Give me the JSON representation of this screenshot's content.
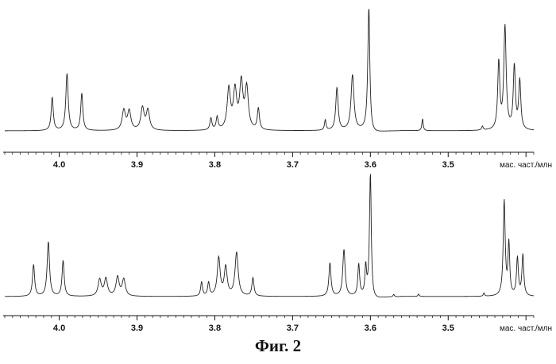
{
  "caption": "Фиг. 2",
  "chart_data": [
    {
      "type": "line",
      "panel": "top",
      "xlabel": "мас. част./млн",
      "xlim": [
        4.07,
        3.39
      ],
      "x_reversed": true,
      "xticks": [
        "4.0",
        "3.9",
        "3.8",
        "3.7",
        "3.6",
        "3.5"
      ],
      "tick_values": [
        4.0,
        3.9,
        3.8,
        3.7,
        3.6,
        3.5
      ],
      "peaks": [
        {
          "ppm": 4.009,
          "height": 0.42,
          "width": 0.0016
        },
        {
          "ppm": 3.99,
          "height": 0.72,
          "width": 0.0018
        },
        {
          "ppm": 3.971,
          "height": 0.47,
          "width": 0.0016
        },
        {
          "ppm": 3.917,
          "height": 0.25,
          "width": 0.0025
        },
        {
          "ppm": 3.91,
          "height": 0.24,
          "width": 0.0025
        },
        {
          "ppm": 3.893,
          "height": 0.28,
          "width": 0.0025
        },
        {
          "ppm": 3.886,
          "height": 0.25,
          "width": 0.0025
        },
        {
          "ppm": 3.805,
          "height": 0.15,
          "width": 0.0015
        },
        {
          "ppm": 3.797,
          "height": 0.16,
          "width": 0.0015
        },
        {
          "ppm": 3.782,
          "height": 0.51,
          "width": 0.0025
        },
        {
          "ppm": 3.774,
          "height": 0.48,
          "width": 0.0025
        },
        {
          "ppm": 3.766,
          "height": 0.58,
          "width": 0.0025
        },
        {
          "ppm": 3.759,
          "height": 0.52,
          "width": 0.0025
        },
        {
          "ppm": 3.744,
          "height": 0.27,
          "width": 0.0016
        },
        {
          "ppm": 3.658,
          "height": 0.13,
          "width": 0.0012
        },
        {
          "ppm": 3.643,
          "height": 0.54,
          "width": 0.0018
        },
        {
          "ppm": 3.623,
          "height": 0.7,
          "width": 0.0022
        },
        {
          "ppm": 3.602,
          "height": 1.55,
          "width": 0.0016
        },
        {
          "ppm": 3.533,
          "height": 0.15,
          "width": 0.001
        },
        {
          "ppm": 3.456,
          "height": 0.05,
          "width": 0.0012
        },
        {
          "ppm": 3.435,
          "height": 0.85,
          "width": 0.0016
        },
        {
          "ppm": 3.427,
          "height": 1.3,
          "width": 0.0018
        },
        {
          "ppm": 3.415,
          "height": 0.8,
          "width": 0.0016
        },
        {
          "ppm": 3.408,
          "height": 0.62,
          "width": 0.0016
        }
      ]
    },
    {
      "type": "line",
      "panel": "bottom",
      "xlabel": "мас. част./млн",
      "xlim": [
        4.07,
        3.39
      ],
      "x_reversed": true,
      "xticks": [
        "4.0",
        "3.9",
        "3.8",
        "3.7",
        "3.6",
        "3.5"
      ],
      "tick_values": [
        4.0,
        3.9,
        3.8,
        3.7,
        3.6,
        3.5
      ],
      "peaks": [
        {
          "ppm": 4.033,
          "height": 0.4,
          "width": 0.0016
        },
        {
          "ppm": 4.014,
          "height": 0.69,
          "width": 0.0018
        },
        {
          "ppm": 3.995,
          "height": 0.45,
          "width": 0.0016
        },
        {
          "ppm": 3.948,
          "height": 0.21,
          "width": 0.0024
        },
        {
          "ppm": 3.94,
          "height": 0.22,
          "width": 0.0024
        },
        {
          "ppm": 3.925,
          "height": 0.24,
          "width": 0.0024
        },
        {
          "ppm": 3.917,
          "height": 0.21,
          "width": 0.0024
        },
        {
          "ppm": 3.817,
          "height": 0.18,
          "width": 0.0014
        },
        {
          "ppm": 3.808,
          "height": 0.17,
          "width": 0.0014
        },
        {
          "ppm": 3.795,
          "height": 0.48,
          "width": 0.0022
        },
        {
          "ppm": 3.786,
          "height": 0.36,
          "width": 0.0022
        },
        {
          "ppm": 3.772,
          "height": 0.55,
          "width": 0.0024
        },
        {
          "ppm": 3.751,
          "height": 0.23,
          "width": 0.0016
        },
        {
          "ppm": 3.652,
          "height": 0.42,
          "width": 0.0016
        },
        {
          "ppm": 3.634,
          "height": 0.59,
          "width": 0.0018
        },
        {
          "ppm": 3.615,
          "height": 0.4,
          "width": 0.0014
        },
        {
          "ppm": 3.606,
          "height": 0.36,
          "width": 0.0012
        },
        {
          "ppm": 3.6,
          "height": 1.55,
          "width": 0.0014
        },
        {
          "ppm": 3.57,
          "height": 0.03,
          "width": 0.001
        },
        {
          "ppm": 3.538,
          "height": 0.03,
          "width": 0.001
        },
        {
          "ppm": 3.454,
          "height": 0.04,
          "width": 0.001
        },
        {
          "ppm": 3.428,
          "height": 1.2,
          "width": 0.0015
        },
        {
          "ppm": 3.422,
          "height": 0.65,
          "width": 0.0013
        },
        {
          "ppm": 3.411,
          "height": 0.48,
          "width": 0.0014
        },
        {
          "ppm": 3.404,
          "height": 0.52,
          "width": 0.0014
        }
      ]
    }
  ],
  "colors": {
    "line": "#222222",
    "axis": "#111111",
    "background": "#ffffff"
  }
}
